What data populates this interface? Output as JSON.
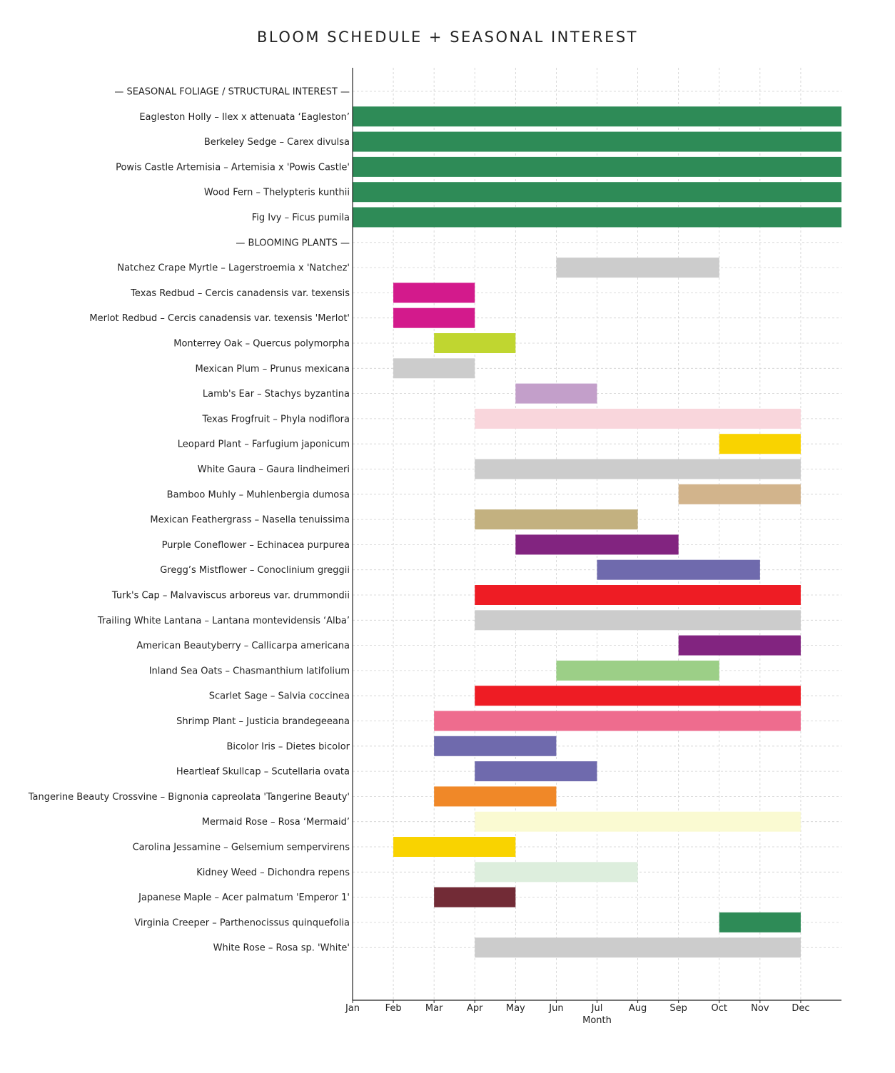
{
  "chart_data": {
    "type": "bar",
    "orientation": "horizontal-range",
    "title": "BLOOM SCHEDULE + SEASONAL INTEREST",
    "xlabel": "Month",
    "ylabel": "",
    "x_ticks": [
      "Jan",
      "Feb",
      "Mar",
      "Apr",
      "May",
      "Jun",
      "Jul",
      "Aug",
      "Sep",
      "Oct",
      "Nov",
      "Dec"
    ],
    "xlim": [
      0,
      12
    ],
    "grid": true,
    "rows": [
      {
        "label": "— SEASONAL FOLIAGE / STRUCTURAL INTEREST —",
        "header": true
      },
      {
        "label": "Eagleston Holly – Ilex x attenuata ‘Eagleston’",
        "start": "Jan",
        "end": "end of Dec",
        "color": "#2e8b57"
      },
      {
        "label": "Berkeley Sedge – Carex divulsa",
        "start": "Jan",
        "end": "end of Dec",
        "color": "#2e8b57"
      },
      {
        "label": "Powis Castle Artemisia – Artemisia x 'Powis Castle'",
        "start": "Jan",
        "end": "end of Dec",
        "color": "#2e8b57"
      },
      {
        "label": "Wood Fern – Thelypteris kunthii",
        "start": "Jan",
        "end": "end of Dec",
        "color": "#2e8b57"
      },
      {
        "label": "Fig Ivy – Ficus pumila",
        "start": "Jan",
        "end": "end of Dec",
        "color": "#2e8b57"
      },
      {
        "label": "— BLOOMING PLANTS —",
        "header": true
      },
      {
        "label": "Natchez Crape Myrtle – Lagerstroemia x 'Natchez'",
        "start": "Jun",
        "end": "Oct",
        "color": "#cccccc"
      },
      {
        "label": "Texas Redbud – Cercis canadensis var. texensis",
        "start": "Feb",
        "end": "Apr",
        "color": "#d31a8c"
      },
      {
        "label": "Merlot Redbud – Cercis canadensis var. texensis 'Merlot'",
        "start": "Feb",
        "end": "Apr",
        "color": "#d31a8c"
      },
      {
        "label": "Monterrey Oak – Quercus polymorpha",
        "start": "Mar",
        "end": "May",
        "color": "#c0d630"
      },
      {
        "label": "Mexican Plum – Prunus mexicana",
        "start": "Feb",
        "end": "Apr",
        "color": "#cccccc"
      },
      {
        "label": "Lamb's Ear – Stachys byzantina",
        "start": "May",
        "end": "Jul",
        "color": "#c39fca"
      },
      {
        "label": "Texas Frogfruit – Phyla nodiflora",
        "start": "Apr",
        "end": "Dec",
        "color": "#f9d6dc"
      },
      {
        "label": "Leopard Plant – Farfugium japonicum",
        "start": "Oct",
        "end": "Dec",
        "color": "#f9d300"
      },
      {
        "label": "White Gaura – Gaura lindheimeri",
        "start": "Apr",
        "end": "Dec",
        "color": "#cccccc"
      },
      {
        "label": "Bamboo Muhly – Muhlenbergia dumosa",
        "start": "Sep",
        "end": "Dec",
        "color": "#d2b48c"
      },
      {
        "label": "Mexican Feathergrass – Nasella tenuissima",
        "start": "Apr",
        "end": "Aug",
        "color": "#c3b180"
      },
      {
        "label": "Purple Coneflower – Echinacea purpurea",
        "start": "May",
        "end": "Sep",
        "color": "#822480"
      },
      {
        "label": "Gregg’s Mistflower – Conoclinium greggii",
        "start": "Jul",
        "end": "Nov",
        "color": "#6f6aad"
      },
      {
        "label": "Turk's Cap – Malvaviscus arboreus var. drummondii",
        "start": "Apr",
        "end": "Dec",
        "color": "#ee1c24"
      },
      {
        "label": "Trailing White Lantana – Lantana montevidensis ‘Alba’",
        "start": "Apr",
        "end": "Dec",
        "color": "#cccccc"
      },
      {
        "label": "American Beautyberry – Callicarpa americana",
        "start": "Sep",
        "end": "Dec",
        "color": "#822480"
      },
      {
        "label": "Inland Sea Oats – Chasmanthium latifolium",
        "start": "Jun",
        "end": "Oct",
        "color": "#9ccf87"
      },
      {
        "label": "Scarlet Sage – Salvia coccinea",
        "start": "Apr",
        "end": "Dec",
        "color": "#ee1c24"
      },
      {
        "label": "Shrimp Plant – Justicia brandegeeana",
        "start": "Mar",
        "end": "Dec",
        "color": "#ee6c8e"
      },
      {
        "label": "Bicolor Iris – Dietes bicolor",
        "start": "Mar",
        "end": "Jun",
        "color": "#6f6aad"
      },
      {
        "label": "Heartleaf Skullcap – Scutellaria ovata",
        "start": "Apr",
        "end": "Jul",
        "color": "#6f6aad"
      },
      {
        "label": "Tangerine Beauty Crossvine – Bignonia capreolata 'Tangerine Beauty'",
        "start": "Mar",
        "end": "Jun",
        "color": "#f08828"
      },
      {
        "label": "Mermaid Rose – Rosa ‘Mermaid’",
        "start": "Apr",
        "end": "Dec",
        "color": "#fafad2"
      },
      {
        "label": "Carolina Jessamine – Gelsemium sempervirens",
        "start": "Feb",
        "end": "May",
        "color": "#f9d300"
      },
      {
        "label": "Kidney Weed – Dichondra repens",
        "start": "Apr",
        "end": "Aug",
        "color": "#ddeedd"
      },
      {
        "label": "Japanese Maple – Acer palmatum 'Emperor 1'",
        "start": "Mar",
        "end": "May",
        "color": "#722b36"
      },
      {
        "label": "Virginia Creeper – Parthenocissus quinquefolia",
        "start": "Oct",
        "end": "Dec",
        "color": "#2e8b57"
      },
      {
        "label": "White Rose – Rosa sp. 'White'",
        "start": "Apr",
        "end": "Dec",
        "color": "#cccccc"
      }
    ]
  }
}
